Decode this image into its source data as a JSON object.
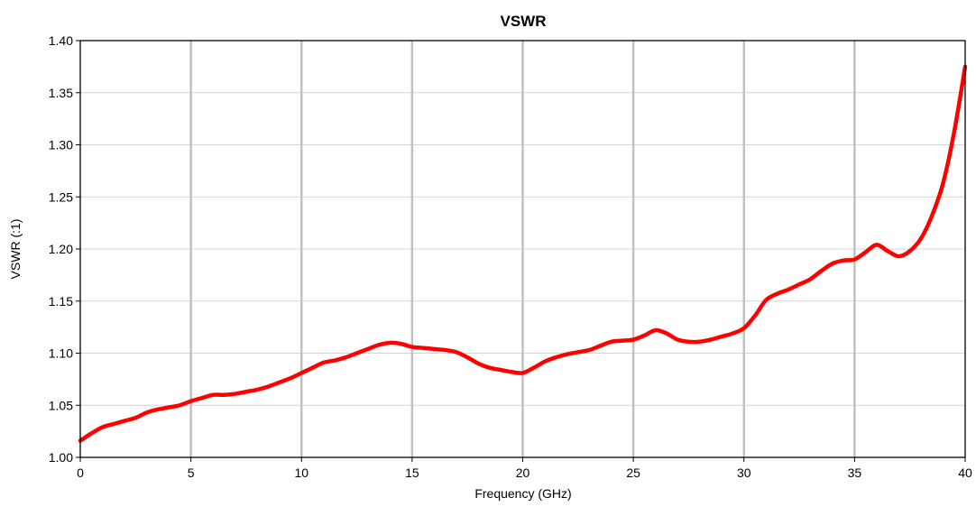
{
  "chart_data": {
    "type": "line",
    "title": "VSWR",
    "xlabel": "Frequency (GHz)",
    "ylabel": "VSWR (:1)",
    "xlim": [
      0,
      40
    ],
    "ylim": [
      1.0,
      1.4
    ],
    "x_ticks": [
      "0",
      "5",
      "10",
      "15",
      "20",
      "25",
      "30",
      "35",
      "40"
    ],
    "y_ticks": [
      "1.00",
      "1.05",
      "1.10",
      "1.15",
      "1.20",
      "1.25",
      "1.30",
      "1.35",
      "1.40"
    ],
    "grid": {
      "vertical": true,
      "horizontal": true
    },
    "colors": {
      "series": "#ff0000",
      "vgrid": "#c0c0c0",
      "hgrid": "#d4d4d4",
      "frame": "#000000"
    },
    "series": [
      {
        "x": [
          0,
          0.5,
          1,
          1.5,
          2,
          2.5,
          3,
          3.5,
          4,
          4.5,
          5,
          5.5,
          6,
          6.5,
          7,
          7.5,
          8,
          8.5,
          9,
          9.5,
          10,
          10.5,
          11,
          11.5,
          12,
          12.5,
          13,
          13.5,
          14,
          14.5,
          15,
          15.5,
          16,
          16.5,
          17,
          17.5,
          18,
          18.5,
          19,
          19.5,
          20,
          20.5,
          21,
          21.5,
          22,
          22.5,
          23,
          23.5,
          24,
          24.5,
          25,
          25.5,
          26,
          26.5,
          27,
          27.5,
          28,
          28.5,
          29,
          29.5,
          30,
          30.5,
          31,
          31.5,
          32,
          32.5,
          33,
          33.5,
          34,
          34.5,
          35,
          35.5,
          36,
          36.5,
          37,
          37.5,
          38,
          38.5,
          39,
          39.5,
          40
        ],
        "values": [
          1.016,
          1.023,
          1.029,
          1.032,
          1.035,
          1.038,
          1.043,
          1.046,
          1.048,
          1.05,
          1.054,
          1.057,
          1.06,
          1.06,
          1.061,
          1.063,
          1.065,
          1.068,
          1.072,
          1.076,
          1.081,
          1.086,
          1.091,
          1.093,
          1.096,
          1.1,
          1.104,
          1.108,
          1.11,
          1.109,
          1.106,
          1.105,
          1.104,
          1.103,
          1.101,
          1.096,
          1.09,
          1.086,
          1.084,
          1.082,
          1.081,
          1.086,
          1.092,
          1.096,
          1.099,
          1.101,
          1.103,
          1.107,
          1.111,
          1.112,
          1.113,
          1.117,
          1.122,
          1.119,
          1.113,
          1.111,
          1.111,
          1.113,
          1.116,
          1.119,
          1.124,
          1.136,
          1.151,
          1.157,
          1.161,
          1.166,
          1.171,
          1.179,
          1.186,
          1.189,
          1.19,
          1.197,
          1.204,
          1.198,
          1.193,
          1.198,
          1.21,
          1.232,
          1.263,
          1.312,
          1.375
        ]
      }
    ]
  }
}
